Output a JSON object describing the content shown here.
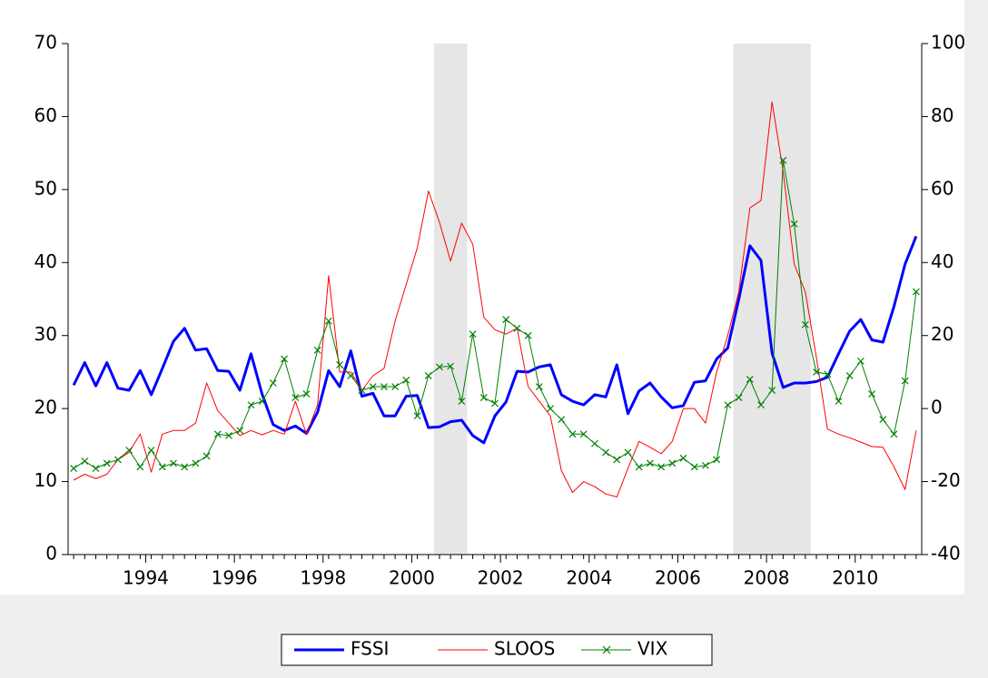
{
  "chart_data": {
    "type": "line",
    "x": [
      1992.875,
      1993.125,
      1993.375,
      1993.625,
      1993.875,
      1994.125,
      1994.375,
      1994.625,
      1994.875,
      1995.125,
      1995.375,
      1995.625,
      1995.875,
      1996.125,
      1996.375,
      1996.625,
      1996.875,
      1997.125,
      1997.375,
      1997.625,
      1997.875,
      1998.125,
      1998.375,
      1998.625,
      1998.875,
      1999.125,
      1999.375,
      1999.625,
      1999.875,
      2000.125,
      2000.375,
      2000.625,
      2000.875,
      2001.125,
      2001.375,
      2001.625,
      2001.875,
      2002.125,
      2002.375,
      2002.625,
      2002.875,
      2003.125,
      2003.375,
      2003.625,
      2003.875,
      2004.125,
      2004.375,
      2004.625,
      2004.875,
      2005.125,
      2005.375,
      2005.625,
      2005.875,
      2006.125,
      2006.375,
      2006.625,
      2006.875,
      2007.125,
      2007.375,
      2007.625,
      2007.875,
      2008.125,
      2008.375,
      2008.625,
      2008.875,
      2009.125,
      2009.375,
      2009.625,
      2009.875,
      2010.125,
      2010.375,
      2010.625,
      2010.875,
      2011.125,
      2011.375,
      2011.625,
      2011.875
    ],
    "series": [
      {
        "name": "FSSI",
        "color": "#0000ff",
        "line_width": 3,
        "axis": "y",
        "values": [
          23.2,
          26.3,
          23.1,
          26.3,
          22.8,
          22.5,
          25.2,
          21.9,
          25.5,
          29.2,
          31.0,
          28.0,
          28.2,
          25.2,
          25.1,
          22.5,
          27.5,
          22.0,
          17.8,
          17.0,
          17.6,
          16.6,
          19.5,
          25.2,
          23.0,
          27.9,
          21.7,
          22.1,
          19.0,
          19.0,
          21.7,
          21.8,
          17.4,
          17.5,
          18.2,
          18.4,
          16.3,
          15.3,
          19.0,
          20.9,
          25.1,
          25.0,
          25.7,
          26.0,
          21.9,
          21.0,
          20.5,
          21.9,
          21.6,
          26.0,
          19.3,
          22.4,
          23.5,
          21.6,
          20.1,
          20.4,
          23.6,
          23.8,
          26.8,
          28.3,
          35.0,
          42.3,
          40.3,
          27.6,
          22.9,
          23.5,
          23.5,
          23.7,
          24.3,
          27.5,
          30.6,
          32.2,
          29.4,
          29.1,
          34.0,
          39.8,
          43.6
        ]
      },
      {
        "name": "SLOOS",
        "color": "#ff0000",
        "line_width": 1,
        "axis": "y2",
        "values": [
          -19.6,
          -18,
          -19.2,
          -18,
          -14,
          -12,
          -7,
          -17.4,
          -7,
          -6,
          -6,
          -4,
          7,
          -0.6,
          -4,
          -7.4,
          -6,
          -7.2,
          -6,
          -7,
          2,
          -7,
          1,
          36.4,
          10,
          10,
          5,
          9,
          11,
          24,
          34,
          44,
          59.6,
          51,
          40.4,
          50.8,
          45,
          25,
          21.6,
          20.4,
          22,
          6,
          2,
          -2,
          -17,
          -23,
          -20,
          -21.4,
          -23.4,
          -24.2,
          -16.4,
          -9,
          -10.6,
          -12.4,
          -9,
          0,
          0,
          -4,
          10,
          20,
          32,
          55,
          57,
          84,
          65,
          39.6,
          32,
          14,
          -5.6,
          -7,
          -8,
          -9.2,
          -10.4,
          -10.6,
          -16,
          -22.2,
          -6
        ]
      },
      {
        "name": "VIX",
        "color": "#008000",
        "line_width": 1,
        "axis": "y",
        "marker": "x",
        "values": [
          11.8,
          12.8,
          11.8,
          12.5,
          13.0,
          14.3,
          12.0,
          14.3,
          12.0,
          12.5,
          12.0,
          12.5,
          13.5,
          16.5,
          16.3,
          17.0,
          20.5,
          21.0,
          23.5,
          26.8,
          21.5,
          22.0,
          28.0,
          32.0,
          26.0,
          24.5,
          22.5,
          23.0,
          23.0,
          23.0,
          23.9,
          19.0,
          24.5,
          25.7,
          25.8,
          21.0,
          30.2,
          21.5,
          20.7,
          32.2,
          31.0,
          30.0,
          23.0,
          20.0,
          18.5,
          16.5,
          16.5,
          15.2,
          14.0,
          13.0,
          14.0,
          12.0,
          12.5,
          12.0,
          12.5,
          13.2,
          12.0,
          12.2,
          13.0,
          20.5,
          21.5,
          24.0,
          20.5,
          22.5,
          54.0,
          45.3,
          31.5,
          25.0,
          24.7,
          21.0,
          24.5,
          26.5,
          22.0,
          18.5,
          16.5,
          23.8,
          36.0
        ]
      }
    ],
    "xlim": [
      1992.75,
      2012.0
    ],
    "xticks": [
      {
        "value": 1994.5,
        "label": "1994"
      },
      {
        "value": 1996.5,
        "label": "1996"
      },
      {
        "value": 1998.5,
        "label": "1998"
      },
      {
        "value": 2000.5,
        "label": "2000"
      },
      {
        "value": 2002.5,
        "label": "2002"
      },
      {
        "value": 2004.5,
        "label": "2004"
      },
      {
        "value": 2006.5,
        "label": "2006"
      },
      {
        "value": 2008.5,
        "label": "2008"
      },
      {
        "value": 2010.5,
        "label": "2010"
      }
    ],
    "ylim": [
      0,
      70
    ],
    "yticks": [
      0,
      10,
      20,
      30,
      40,
      50,
      60,
      70
    ],
    "y2lim": [
      -40,
      100
    ],
    "y2ticks": [
      -40,
      -20,
      0,
      20,
      40,
      60,
      80,
      100
    ],
    "shaded_periods": [
      [
        2001.0,
        2001.75
      ],
      [
        2007.75,
        2009.5
      ]
    ],
    "shade_color": "#e6e6e6",
    "legend": "bottom"
  }
}
